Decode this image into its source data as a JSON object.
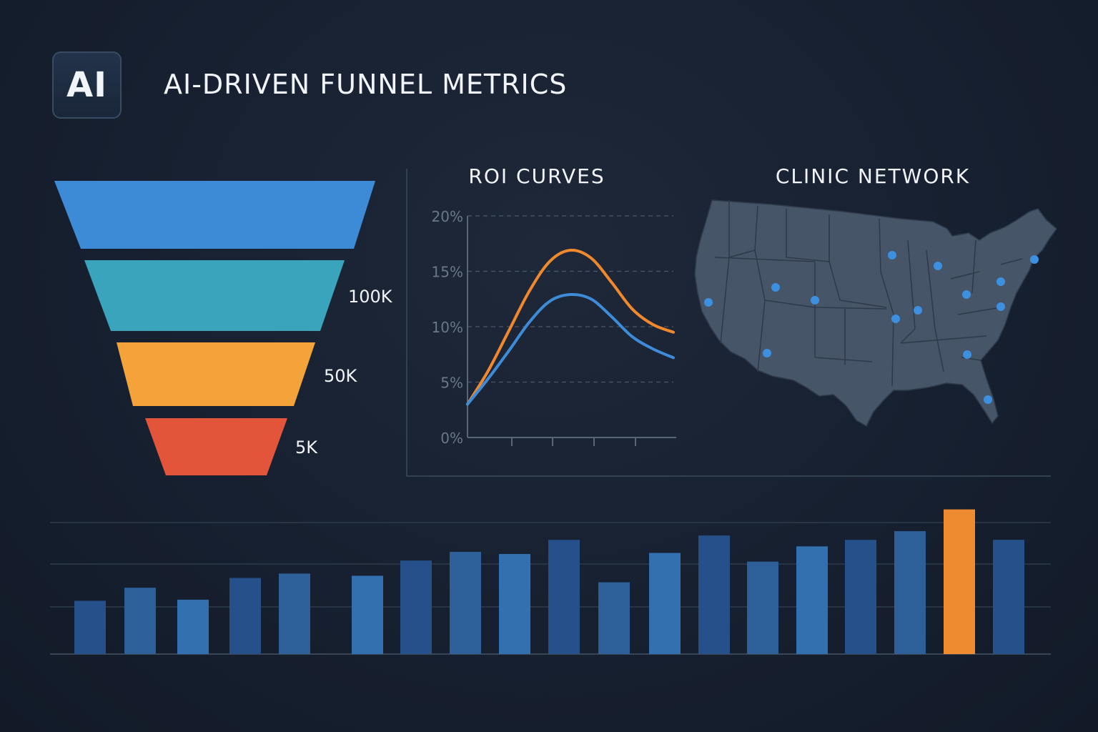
{
  "header": {
    "logo_text": "AI",
    "title": "AI-DRIVEN FUNNEL METRICS"
  },
  "panels": {
    "roi_title": "ROI CURVES",
    "clinic_title": "CLINIC NETWORK"
  },
  "colors": {
    "funnel": [
      "#3d8bd6",
      "#3aa4bd",
      "#f3a33a",
      "#e2553a"
    ],
    "roi_orange": "#f0892e",
    "roi_blue": "#3e8bd8",
    "bar_dark": "#265089",
    "bar_mid": "#2d5f99",
    "bar_light": "#3370b0",
    "bar_highlight": "#ee8a2f",
    "map_fill": "#475569",
    "map_dot": "#3d8fe0"
  },
  "chart_data": [
    {
      "type": "funnel",
      "stages": [
        {
          "label": "",
          "value": null
        },
        {
          "label": "100K",
          "value": 100000
        },
        {
          "label": "50K",
          "value": 50000
        },
        {
          "label": "5K",
          "value": 5000
        }
      ]
    },
    {
      "type": "line",
      "title": "ROI CURVES",
      "y_ticks": [
        "20%",
        "15%",
        "10%",
        "5%",
        "0%"
      ],
      "ylim": [
        0,
        20
      ],
      "grid": true,
      "x": [
        0,
        1,
        2,
        3,
        4,
        5,
        6,
        7,
        8,
        9,
        10
      ],
      "series": [
        {
          "color": "orange",
          "values": [
            3.0,
            6.0,
            9.6,
            13.2,
            15.9,
            16.9,
            16.2,
            14.0,
            11.6,
            10.2,
            9.5
          ]
        },
        {
          "color": "blue",
          "values": [
            3.0,
            5.3,
            7.8,
            10.4,
            12.3,
            12.9,
            12.5,
            10.9,
            9.1,
            8.0,
            7.2
          ]
        }
      ]
    },
    {
      "type": "bar",
      "title": "",
      "values": [
        49,
        61,
        50,
        70,
        74,
        72,
        86,
        94,
        92,
        105,
        66,
        93,
        109,
        85,
        99,
        105,
        113,
        133,
        105
      ],
      "highlight_index": 17,
      "ylim": [
        0,
        138
      ],
      "grid": true
    }
  ],
  "map": {
    "title": "CLINIC NETWORK",
    "clinic_count": 14
  }
}
